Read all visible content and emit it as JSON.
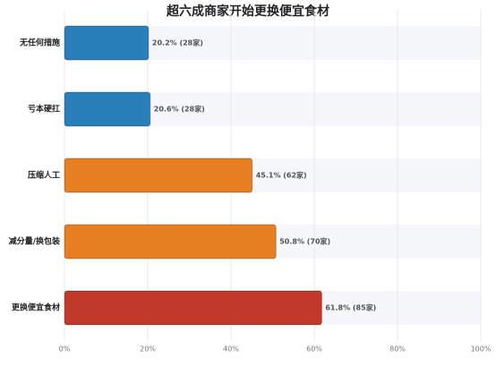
{
  "chart_data": {
    "type": "bar",
    "orientation": "horizontal",
    "title": "超六成商家开始更换便宜食材",
    "categories": [
      "无任何措施",
      "亏本硬扛",
      "压缩人工",
      "减分量/换包装",
      "更换便宜食材"
    ],
    "values": [
      20.2,
      20.6,
      45.1,
      50.8,
      61.8
    ],
    "value_labels": [
      "20.2% (28家)",
      "20.6% (28家)",
      "45.1% (62家)",
      "50.8% (70家)",
      "61.8% (85家)"
    ],
    "colors": [
      "#2980b9",
      "#2980b9",
      "#e67e22",
      "#e67e22",
      "#c0392b"
    ],
    "xlim": [
      0,
      100
    ],
    "xticks": [
      {
        "value": 0,
        "label": "0%"
      },
      {
        "value": 20,
        "label": "20%"
      },
      {
        "value": 40,
        "label": "40%"
      },
      {
        "value": 60,
        "label": "60%"
      },
      {
        "value": 80,
        "label": "80%"
      },
      {
        "value": 100,
        "label": "100%"
      }
    ],
    "grid": true
  }
}
